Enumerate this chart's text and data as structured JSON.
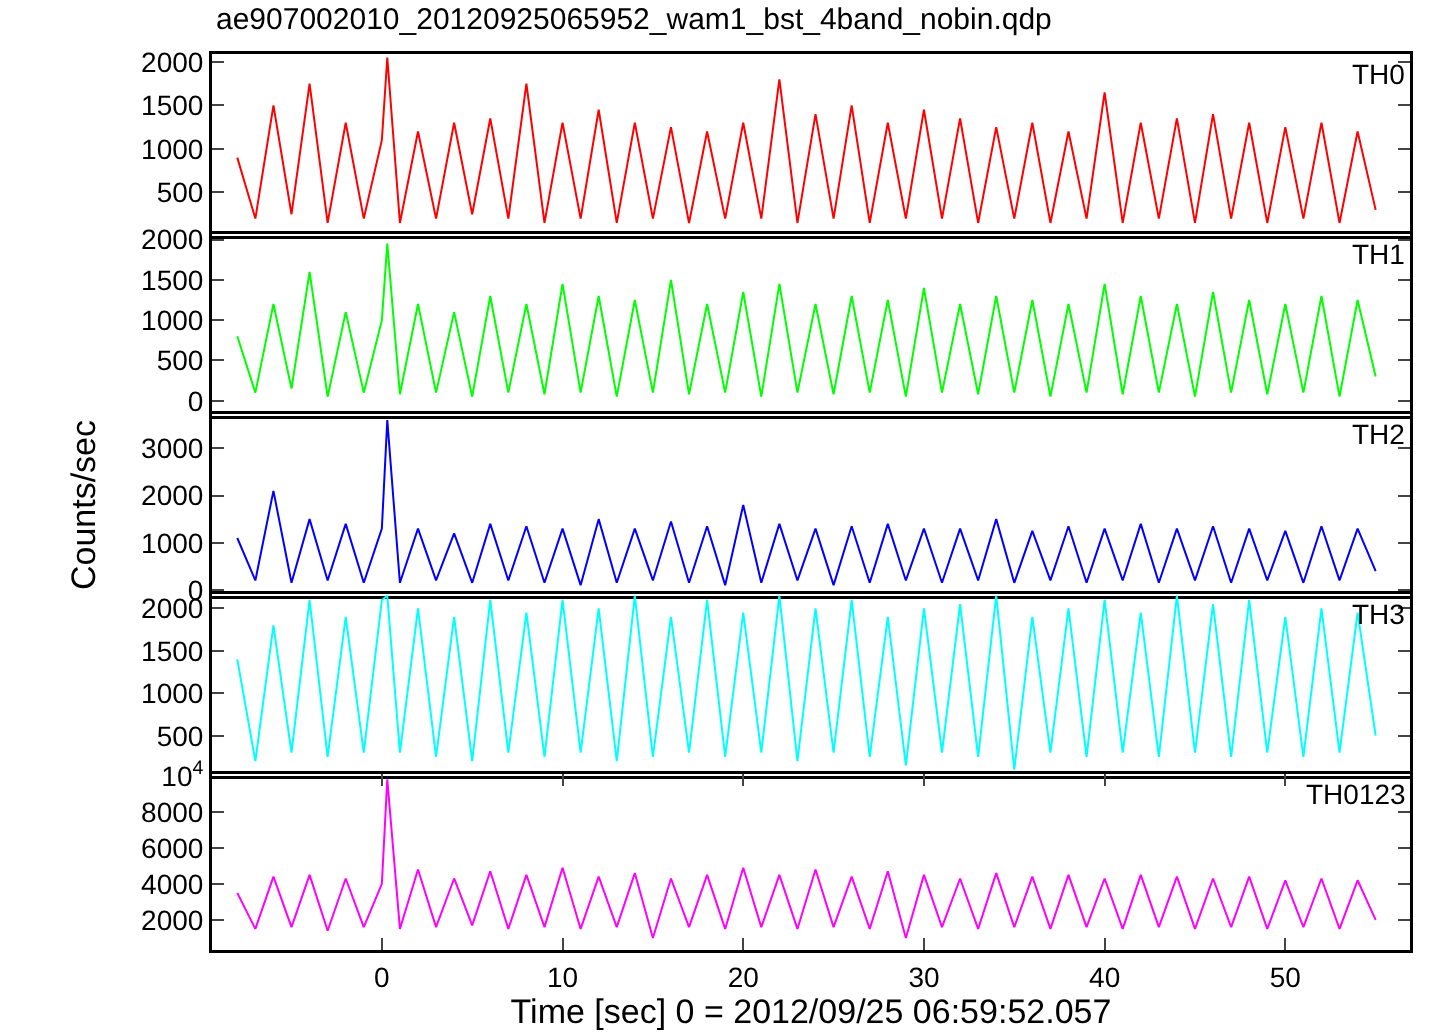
{
  "chart_data": [
    {
      "type": "line",
      "title": "ae907002010_20120925065952_wam1_bst_4band_nobin.qdp",
      "x": [
        -8,
        -7,
        -6,
        -5,
        -4,
        -3,
        -2,
        -1,
        0,
        0.3,
        1,
        2,
        3,
        4,
        5,
        6,
        7,
        8,
        9,
        10,
        11,
        12,
        13,
        14,
        15,
        16,
        17,
        18,
        19,
        20,
        21,
        22,
        23,
        24,
        25,
        26,
        27,
        28,
        29,
        30,
        31,
        32,
        33,
        34,
        35,
        36,
        37,
        38,
        39,
        40,
        41,
        42,
        43,
        44,
        45,
        46,
        47,
        48,
        49,
        50,
        51,
        52,
        53,
        54,
        55
      ],
      "xlim": [
        -9.4,
        56.9
      ],
      "ylim": [
        0,
        2090
      ],
      "yticks": [
        500,
        1000,
        1500,
        2000
      ],
      "tick_labels": "y",
      "legend": false,
      "grid": false,
      "series": [
        {
          "name": "TH0",
          "color": "#ff0000",
          "values": [
            900,
            200,
            1500,
            250,
            1750,
            150,
            1300,
            200,
            1100,
            2050,
            150,
            1200,
            200,
            1300,
            250,
            1350,
            200,
            1750,
            150,
            1300,
            200,
            1450,
            150,
            1300,
            200,
            1250,
            150,
            1200,
            200,
            1300,
            200,
            1800,
            150,
            1400,
            200,
            1500,
            150,
            1300,
            200,
            1450,
            200,
            1350,
            150,
            1250,
            200,
            1300,
            150,
            1200,
            200,
            1650,
            150,
            1300,
            200,
            1350,
            150,
            1400,
            200,
            1300,
            150,
            1250,
            200,
            1300,
            150,
            1200,
            300
          ]
        }
      ]
    },
    {
      "type": "line",
      "x": [
        -8,
        -7,
        -6,
        -5,
        -4,
        -3,
        -2,
        -1,
        0,
        0.3,
        1,
        2,
        3,
        4,
        5,
        6,
        7,
        8,
        9,
        10,
        11,
        12,
        13,
        14,
        15,
        16,
        17,
        18,
        19,
        20,
        21,
        22,
        23,
        24,
        25,
        26,
        27,
        28,
        29,
        30,
        31,
        32,
        33,
        34,
        35,
        36,
        37,
        38,
        39,
        40,
        41,
        42,
        43,
        44,
        45,
        46,
        47,
        48,
        49,
        50,
        51,
        52,
        53,
        54,
        55
      ],
      "xlim": [
        -9.4,
        56.9
      ],
      "ylim": [
        -190,
        2070
      ],
      "yticks": [
        0,
        500,
        1000,
        1500,
        2000
      ],
      "tick_labels": "y",
      "legend": false,
      "grid": false,
      "series": [
        {
          "name": "TH1",
          "color": "#00ff00",
          "values": [
            800,
            100,
            1200,
            150,
            1600,
            50,
            1100,
            100,
            1000,
            1950,
            80,
            1200,
            100,
            1100,
            50,
            1300,
            100,
            1200,
            80,
            1450,
            100,
            1300,
            50,
            1250,
            100,
            1500,
            80,
            1200,
            100,
            1350,
            50,
            1450,
            100,
            1200,
            80,
            1300,
            100,
            1250,
            50,
            1400,
            100,
            1200,
            80,
            1300,
            100,
            1250,
            50,
            1200,
            100,
            1450,
            80,
            1300,
            100,
            1200,
            50,
            1350,
            100,
            1250,
            80,
            1200,
            100,
            1300,
            50,
            1250,
            300
          ]
        }
      ]
    },
    {
      "type": "line",
      "ylabel": "Counts/sec",
      "x": [
        -8,
        -7,
        -6,
        -5,
        -4,
        -3,
        -2,
        -1,
        0,
        0.3,
        1,
        2,
        3,
        4,
        5,
        6,
        7,
        8,
        9,
        10,
        11,
        12,
        13,
        14,
        15,
        16,
        17,
        18,
        19,
        20,
        21,
        22,
        23,
        24,
        25,
        26,
        27,
        28,
        29,
        30,
        31,
        32,
        33,
        34,
        35,
        36,
        37,
        38,
        39,
        40,
        41,
        42,
        43,
        44,
        45,
        46,
        47,
        48,
        49,
        50,
        51,
        52,
        53,
        54,
        55
      ],
      "xlim": [
        -9.4,
        56.9
      ],
      "ylim": [
        -130,
        3730
      ],
      "yticks": [
        0,
        1000,
        2000,
        3000
      ],
      "tick_labels": "y",
      "legend": false,
      "grid": false,
      "series": [
        {
          "name": "TH2",
          "color": "#0000ff",
          "values": [
            1100,
            200,
            2100,
            150,
            1500,
            200,
            1400,
            150,
            1300,
            3600,
            150,
            1300,
            200,
            1200,
            150,
            1400,
            200,
            1350,
            150,
            1300,
            100,
            1500,
            150,
            1300,
            200,
            1450,
            150,
            1350,
            100,
            1800,
            150,
            1400,
            200,
            1300,
            100,
            1350,
            150,
            1400,
            200,
            1300,
            150,
            1300,
            200,
            1500,
            150,
            1250,
            200,
            1350,
            150,
            1300,
            200,
            1400,
            150,
            1300,
            200,
            1350,
            150,
            1300,
            200,
            1250,
            150,
            1350,
            200,
            1300,
            400
          ]
        }
      ]
    },
    {
      "type": "line",
      "x": [
        -8,
        -7,
        -6,
        -5,
        -4,
        -3,
        -2,
        -1,
        0,
        0.3,
        1,
        2,
        3,
        4,
        5,
        6,
        7,
        8,
        9,
        10,
        11,
        12,
        13,
        14,
        15,
        16,
        17,
        18,
        19,
        20,
        21,
        22,
        23,
        24,
        25,
        26,
        27,
        28,
        29,
        30,
        31,
        32,
        33,
        34,
        35,
        36,
        37,
        38,
        39,
        40,
        41,
        42,
        43,
        44,
        45,
        46,
        47,
        48,
        49,
        50,
        51,
        52,
        53,
        54,
        55
      ],
      "xlim": [
        -9.4,
        56.9
      ],
      "ylim": [
        25,
        2170
      ],
      "yticks": [
        500,
        1000,
        1500,
        2000
      ],
      "tick_labels": "y",
      "legend": false,
      "grid": false,
      "series": [
        {
          "name": "TH3",
          "color": "#00ffff",
          "values": [
            1400,
            200,
            1800,
            300,
            2100,
            250,
            1900,
            300,
            2100,
            2150,
            300,
            2000,
            250,
            1900,
            200,
            2100,
            300,
            1950,
            250,
            2100,
            300,
            2000,
            200,
            2150,
            250,
            1900,
            300,
            2100,
            250,
            1950,
            300,
            2150,
            200,
            2000,
            300,
            2100,
            250,
            1900,
            150,
            2000,
            300,
            2050,
            250,
            2150,
            100,
            1900,
            300,
            2000,
            250,
            2100,
            300,
            1950,
            250,
            2150,
            300,
            2050,
            250,
            2100,
            300,
            1900,
            250,
            2000,
            300,
            1950,
            500
          ]
        }
      ]
    },
    {
      "type": "line",
      "xlabel": "Time [sec] 0 = 2012/09/25 06:59:52.057",
      "x": [
        -8,
        -7,
        -6,
        -5,
        -4,
        -3,
        -2,
        -1,
        0,
        0.3,
        1,
        2,
        3,
        4,
        5,
        6,
        7,
        8,
        9,
        10,
        11,
        12,
        13,
        14,
        15,
        16,
        17,
        18,
        19,
        20,
        21,
        22,
        23,
        24,
        25,
        26,
        27,
        28,
        29,
        30,
        31,
        32,
        33,
        34,
        35,
        36,
        37,
        38,
        39,
        40,
        41,
        42,
        43,
        44,
        45,
        46,
        47,
        48,
        49,
        50,
        51,
        52,
        53,
        54,
        55
      ],
      "xlim": [
        -9.4,
        56.9
      ],
      "xticks": [
        0,
        10,
        20,
        30,
        40,
        50
      ],
      "ylim": [
        330,
        10100
      ],
      "yticks": [
        2000,
        4000,
        6000,
        8000,
        {
          "value": 10000,
          "label": "10$^{4}$"
        }
      ],
      "legend": false,
      "grid": false,
      "series": [
        {
          "name": "TH0123",
          "color": "#ff00ff",
          "values": [
            3500,
            1500,
            4400,
            1600,
            4500,
            1400,
            4300,
            1600,
            4000,
            9800,
            1500,
            4800,
            1600,
            4300,
            1700,
            4700,
            1500,
            4500,
            1600,
            4900,
            1500,
            4400,
            1600,
            4600,
            1000,
            4300,
            1600,
            4500,
            1500,
            4900,
            1600,
            4500,
            1500,
            4800,
            1600,
            4400,
            1500,
            4700,
            1000,
            4500,
            1600,
            4300,
            1500,
            4600,
            1600,
            4400,
            1500,
            4500,
            1600,
            4300,
            1500,
            4500,
            1600,
            4400,
            1500,
            4300,
            1600,
            4400,
            1500,
            4200,
            1600,
            4300,
            1500,
            4200,
            2000
          ]
        }
      ]
    }
  ]
}
